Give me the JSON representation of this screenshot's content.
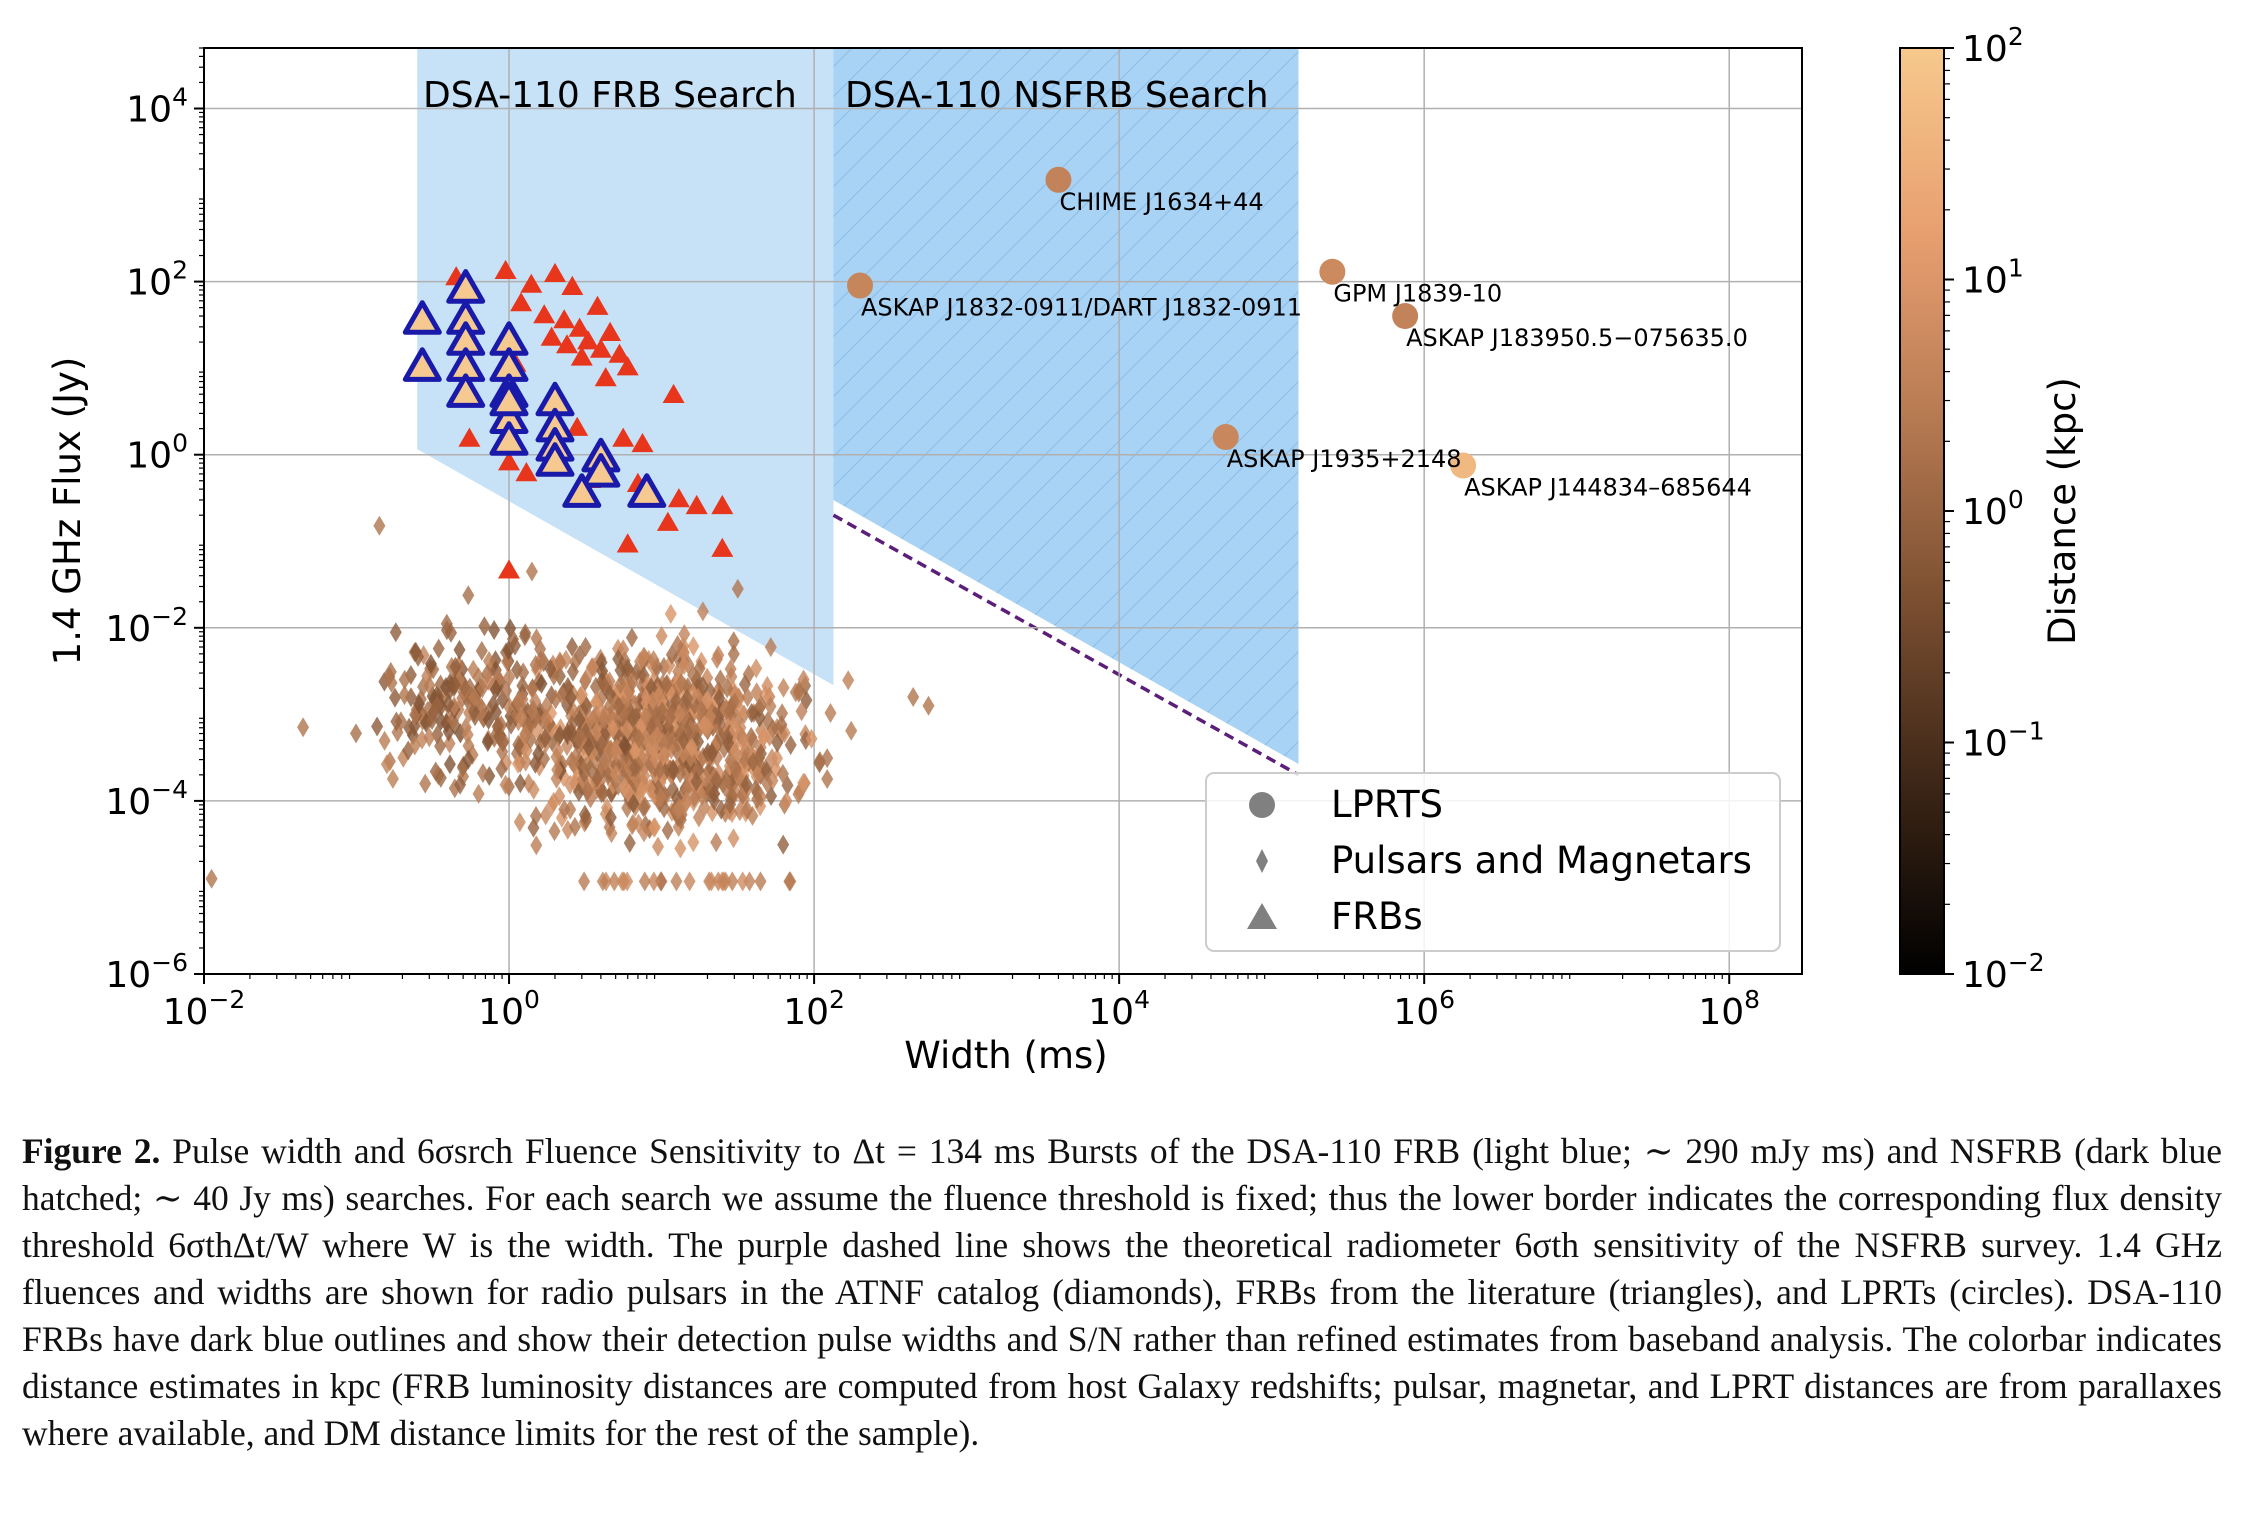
{
  "chart_data": {
    "type": "scatter",
    "xlabel": "Width (ms)",
    "ylabel": "1.4 GHz Flux (Jy)",
    "xscale": "log",
    "yscale": "log",
    "xlim": [
      0.01,
      300000000
    ],
    "ylim": [
      1e-06,
      50000
    ],
    "grid": true,
    "x_ticks": [
      {
        "base": "10",
        "exp": "−2",
        "value": 0.01
      },
      {
        "base": "10",
        "exp": "0",
        "value": 1
      },
      {
        "base": "10",
        "exp": "2",
        "value": 100
      },
      {
        "base": "10",
        "exp": "4",
        "value": 10000
      },
      {
        "base": "10",
        "exp": "6",
        "value": 1000000
      },
      {
        "base": "10",
        "exp": "8",
        "value": 100000000
      }
    ],
    "y_ticks": [
      {
        "base": "10",
        "exp": "−6",
        "value": 1e-06
      },
      {
        "base": "10",
        "exp": "−4",
        "value": 0.0001
      },
      {
        "base": "10",
        "exp": "−2",
        "value": 0.01
      },
      {
        "base": "10",
        "exp": "0",
        "value": 1
      },
      {
        "base": "10",
        "exp": "2",
        "value": 100
      },
      {
        "base": "10",
        "exp": "4",
        "value": 10000
      }
    ],
    "regions": [
      {
        "name": "DSA-110 FRB Search",
        "x_min": 0.25,
        "x_max": 134,
        "fluence_threshold_Jy_ms": 0.29,
        "y_top": 50000,
        "color": "#c7e1f7"
      },
      {
        "name": "DSA-110 NSFRB Search",
        "x_min": 134,
        "x_max": 150000,
        "fluence_threshold_Jy_ms": 40,
        "y_top": 50000,
        "color": "#a9d3f5",
        "hatched": true
      }
    ],
    "radiometer_line": {
      "label": "NSFRB radiometer 6σth sensitivity",
      "x": [
        134,
        150000
      ],
      "y": [
        0.2,
        0.0002
      ],
      "color": "#5b1f7a",
      "style": "dashed"
    },
    "series": [
      {
        "name": "LPRTS",
        "marker": "circle",
        "points": [
          {
            "label": "CHIME J1634+44",
            "x": 4000,
            "y": 1500,
            "dist_kpc": 4
          },
          {
            "label": "ASKAP J1832-0911/DART J1832-0911",
            "x": 200,
            "y": 90,
            "dist_kpc": 4.5
          },
          {
            "label": "GPM J1839-10",
            "x": 250000,
            "y": 130,
            "dist_kpc": 5.7
          },
          {
            "label": "ASKAP J183950.5−075635.0",
            "x": 750000,
            "y": 40,
            "dist_kpc": 4
          },
          {
            "label": "ASKAP J1935+2148",
            "x": 50000,
            "y": 1.6,
            "dist_kpc": 4.85
          },
          {
            "label": "ASKAP J144834–685644",
            "x": 1800000,
            "y": 0.75,
            "dist_kpc": 50
          }
        ]
      },
      {
        "name": "FRBs (literature)",
        "marker": "triangle",
        "color": "#e8361c",
        "points": [
          {
            "x": 0.45,
            "y": 110
          },
          {
            "x": 0.95,
            "y": 130
          },
          {
            "x": 1.4,
            "y": 90
          },
          {
            "x": 2.0,
            "y": 120
          },
          {
            "x": 2.6,
            "y": 85
          },
          {
            "x": 1.2,
            "y": 55
          },
          {
            "x": 3.8,
            "y": 50
          },
          {
            "x": 1.7,
            "y": 40
          },
          {
            "x": 2.3,
            "y": 35
          },
          {
            "x": 2.9,
            "y": 28
          },
          {
            "x": 4.6,
            "y": 25
          },
          {
            "x": 1.9,
            "y": 22
          },
          {
            "x": 3.3,
            "y": 20
          },
          {
            "x": 2.4,
            "y": 18
          },
          {
            "x": 4.0,
            "y": 16
          },
          {
            "x": 5.3,
            "y": 14
          },
          {
            "x": 3.0,
            "y": 13
          },
          {
            "x": 1.1,
            "y": 11
          },
          {
            "x": 6.0,
            "y": 10
          },
          {
            "x": 4.3,
            "y": 7.5
          },
          {
            "x": 12,
            "y": 4.8
          },
          {
            "x": 2.8,
            "y": 2.0
          },
          {
            "x": 0.55,
            "y": 1.5
          },
          {
            "x": 5.6,
            "y": 1.5
          },
          {
            "x": 7.5,
            "y": 1.3
          },
          {
            "x": 1.0,
            "y": 0.8
          },
          {
            "x": 1.3,
            "y": 0.6
          },
          {
            "x": 3.4,
            "y": 0.5
          },
          {
            "x": 7.0,
            "y": 0.45
          },
          {
            "x": 13,
            "y": 0.3
          },
          {
            "x": 17,
            "y": 0.25
          },
          {
            "x": 25,
            "y": 0.25
          },
          {
            "x": 11,
            "y": 0.16
          },
          {
            "x": 6.0,
            "y": 0.09
          },
          {
            "x": 25,
            "y": 0.08
          },
          {
            "x": 1.0,
            "y": 0.045
          }
        ]
      },
      {
        "name": "DSA-110 FRBs",
        "marker": "triangle",
        "color": "#f5c98f",
        "outline": "#1a1aaa",
        "points": [
          {
            "x": 0.27,
            "y": 35
          },
          {
            "x": 0.52,
            "y": 80
          },
          {
            "x": 0.52,
            "y": 35
          },
          {
            "x": 0.52,
            "y": 20
          },
          {
            "x": 0.52,
            "y": 10
          },
          {
            "x": 0.52,
            "y": 5
          },
          {
            "x": 0.27,
            "y": 10
          },
          {
            "x": 1.0,
            "y": 20
          },
          {
            "x": 1.0,
            "y": 10
          },
          {
            "x": 1.0,
            "y": 5
          },
          {
            "x": 1.0,
            "y": 2.5
          },
          {
            "x": 1.0,
            "y": 1.4
          },
          {
            "x": 1.0,
            "y": 4
          },
          {
            "x": 2.0,
            "y": 4
          },
          {
            "x": 2.0,
            "y": 2
          },
          {
            "x": 2.0,
            "y": 1.2
          },
          {
            "x": 2.0,
            "y": 0.8
          },
          {
            "x": 4.0,
            "y": 0.9
          },
          {
            "x": 4.0,
            "y": 0.6
          },
          {
            "x": 8.0,
            "y": 0.35
          },
          {
            "x": 3.0,
            "y": 0.35
          }
        ]
      },
      {
        "name": "Pulsars and Magnetars",
        "marker": "diamond",
        "description": "ATNF catalog pulsars; ~1000 points concentrated at widths 0.3–100 ms and fluxes 1e-5–0.1 Jy"
      }
    ],
    "legend": {
      "position": "lower-right",
      "entries": [
        {
          "label": "LPRTS",
          "marker": "circle"
        },
        {
          "label": "Pulsars and Magnetars",
          "marker": "diamond"
        },
        {
          "label": "FRBs",
          "marker": "triangle"
        }
      ]
    },
    "colorbar": {
      "label": "Distance (kpc)",
      "scale": "log",
      "range": [
        0.01,
        100
      ],
      "ticks": [
        {
          "base": "10",
          "exp": "2",
          "value": 100
        },
        {
          "base": "10",
          "exp": "1",
          "value": 10
        },
        {
          "base": "10",
          "exp": "0",
          "value": 1
        },
        {
          "base": "10",
          "exp": "−1",
          "value": 0.1
        },
        {
          "base": "10",
          "exp": "−2",
          "value": 0.01
        }
      ],
      "colors": [
        "#000000",
        "#3b2516",
        "#7a4e30",
        "#b67a52",
        "#e89f70",
        "#f6c98d"
      ]
    }
  },
  "caption": {
    "label": "Figure 2.",
    "text": "Pulse width and 6σsrch Fluence Sensitivity to Δt = 134 ms Bursts of the DSA-110 FRB (light blue; ∼ 290 mJy ms) and NSFRB (dark blue hatched; ∼ 40 Jy ms) searches. For each search we assume the fluence threshold is fixed; thus the lower border indicates the corresponding flux density threshold 6σthΔt/W where W is the width. The purple dashed line shows the theoretical radiometer 6σth sensitivity of the NSFRB survey. 1.4 GHz fluences and widths are shown for radio pulsars in the ATNF catalog (diamonds), FRBs from the literature (triangles), and LPRTs (circles). DSA-110 FRBs have dark blue outlines and show their detection pulse widths and S/N rather than refined estimates from baseband analysis. The colorbar indicates distance estimates in kpc (FRB luminosity distances are computed from host Galaxy redshifts; pulsar, magnetar, and LPRT distances are from parallaxes where available, and DM distance limits for the rest of the sample)."
  }
}
